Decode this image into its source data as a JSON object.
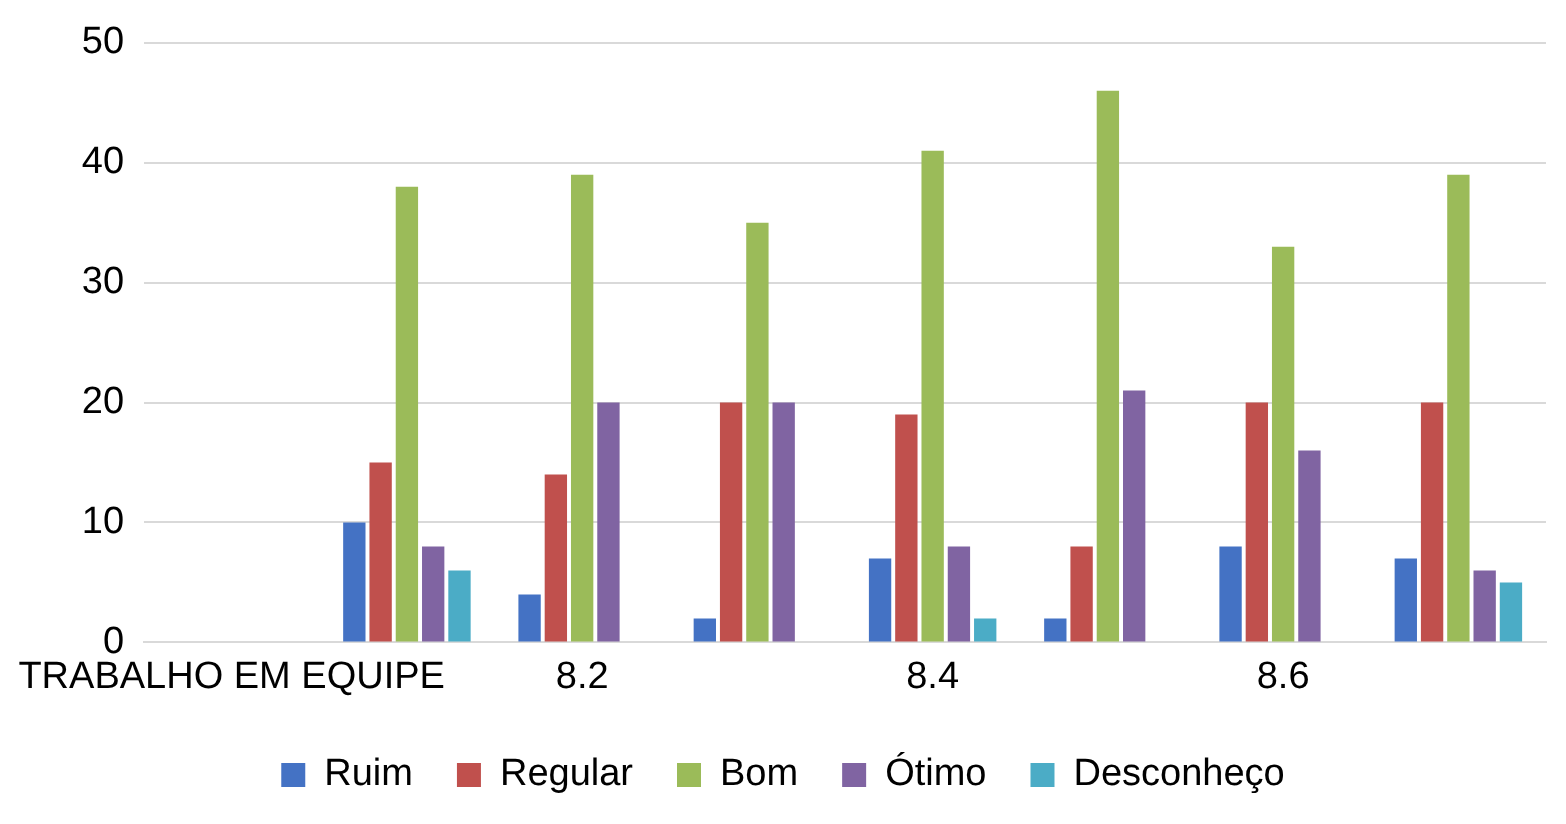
{
  "chart_data": {
    "type": "bar",
    "categories": [
      "TRABALHO EM EQUIPE",
      null,
      "8.2",
      null,
      "8.4",
      null,
      "8.6",
      null
    ],
    "series": [
      {
        "name": "Ruim",
        "color": "#4472c4",
        "values": [
          null,
          10,
          4,
          2,
          7,
          2,
          8,
          7
        ]
      },
      {
        "name": "Regular",
        "color": "#c0504d",
        "values": [
          null,
          15,
          14,
          20,
          19,
          8,
          20,
          20
        ]
      },
      {
        "name": "Bom",
        "color": "#9bbb59",
        "values": [
          null,
          38,
          39,
          35,
          41,
          46,
          33,
          39
        ]
      },
      {
        "name": "Ótimo",
        "color": "#8064a2",
        "values": [
          null,
          8,
          20,
          20,
          8,
          21,
          16,
          6
        ]
      },
      {
        "name": "Desconheço",
        "color": "#4bacc6",
        "values": [
          null,
          6,
          0,
          0,
          2,
          0,
          0,
          5
        ]
      }
    ],
    "ylim": [
      0,
      50
    ],
    "yticks": [
      0,
      10,
      20,
      30,
      40,
      50
    ],
    "grid": "y",
    "legend": "bottom"
  }
}
